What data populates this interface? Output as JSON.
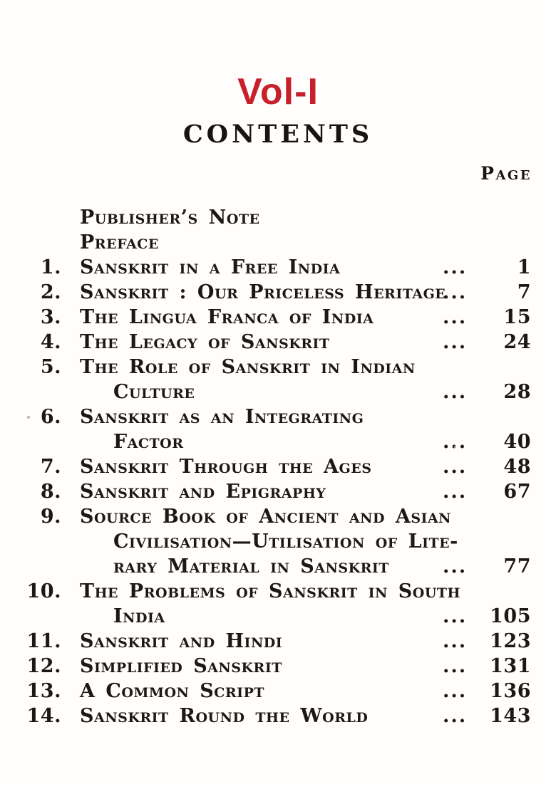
{
  "header": {
    "volume_label": "Vol-I",
    "title": "CONTENTS",
    "page_column_label": "Page",
    "accent_color": "#c8202a",
    "ink_color": "#1c1815"
  },
  "toc": {
    "front_matter": [
      {
        "title": "Publisher’s Note"
      },
      {
        "title": "Preface"
      }
    ],
    "entries": [
      {
        "number": "1.",
        "lines": [
          "Sanskrit in a Free India"
        ],
        "dots": "...",
        "page": "1"
      },
      {
        "number": "2.",
        "lines": [
          "Sanskrit : Our Priceless Heritage"
        ],
        "dots": "...",
        "page": "7"
      },
      {
        "number": "3.",
        "lines": [
          "The Lingua Franca of India"
        ],
        "dots": "...",
        "page": "15"
      },
      {
        "number": "4.",
        "lines": [
          "The Legacy of Sanskrit"
        ],
        "dots": "...",
        "page": "24"
      },
      {
        "number": "5.",
        "lines": [
          "The Role of Sanskrit in Indian",
          "Culture"
        ],
        "dots": "...",
        "page": "28"
      },
      {
        "number": "6.",
        "lines": [
          "Sanskrit as an Integrating",
          "Factor"
        ],
        "dots": "...",
        "page": "40"
      },
      {
        "number": "7.",
        "lines": [
          "Sanskrit Through the Ages"
        ],
        "dots": "...",
        "page": "48"
      },
      {
        "number": "8.",
        "lines": [
          "Sanskrit and Epigraphy"
        ],
        "dots": "...",
        "page": "67"
      },
      {
        "number": "9.",
        "lines": [
          "Source Book of Ancient and Asian",
          "Civilisation—Utilisation of Lite-",
          "rary Material in Sanskrit"
        ],
        "dots": "...",
        "page": "77"
      },
      {
        "number": "10.",
        "lines": [
          "The Problems of Sanskrit in South",
          "India"
        ],
        "dots": "...",
        "page": "105"
      },
      {
        "number": "11.",
        "lines": [
          "Sanskrit and Hindi"
        ],
        "dots": "...",
        "page": "123"
      },
      {
        "number": "12.",
        "lines": [
          "Simplified Sanskrit"
        ],
        "dots": "...",
        "page": "131"
      },
      {
        "number": "13.",
        "lines": [
          "A Common Script"
        ],
        "dots": "...",
        "page": "136"
      },
      {
        "number": "14.",
        "lines": [
          "Sanskrit Round the World"
        ],
        "dots": "...",
        "page": "143"
      }
    ]
  }
}
